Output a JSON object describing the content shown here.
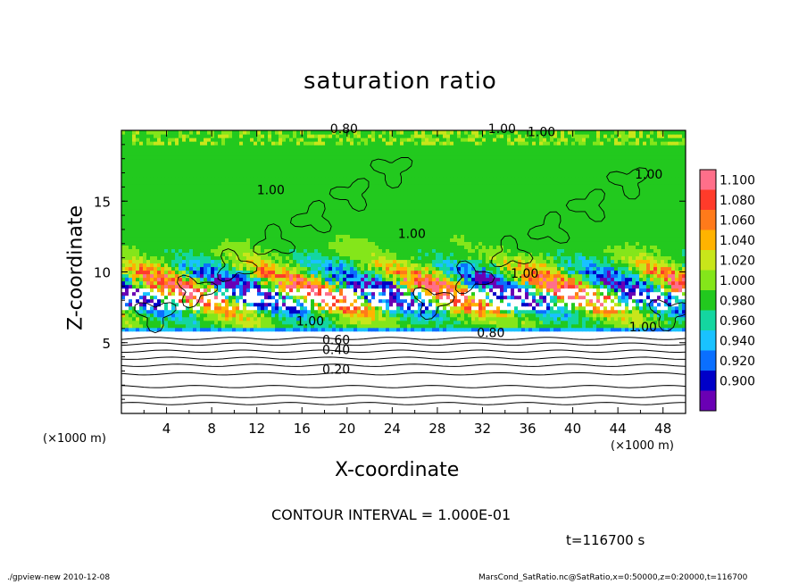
{
  "chart_data": {
    "type": "heatmap",
    "title": "saturation ratio",
    "xlabel": "X-coordinate",
    "ylabel": "Z-coordinate",
    "x_unit": "(×1000 m)",
    "y_unit": "(×1000 m)",
    "xlim": [
      0,
      50
    ],
    "ylim": [
      0,
      20
    ],
    "x_ticks": [
      "4",
      "8",
      "12",
      "16",
      "20",
      "24",
      "28",
      "32",
      "36",
      "40",
      "44",
      "48"
    ],
    "y_ticks": [
      "5",
      "10",
      "15"
    ],
    "colorbar": {
      "levels": [
        "1.100",
        "1.080",
        "1.060",
        "1.040",
        "1.020",
        "1.000",
        "0.980",
        "0.960",
        "0.940",
        "0.920",
        "0.900"
      ],
      "colors": [
        "#ff6f8a",
        "#ff3b2a",
        "#ff7a1a",
        "#ffb300",
        "#c8e61a",
        "#84e61a",
        "#22c91e",
        "#14d6a0",
        "#19c2ff",
        "#0a6fff",
        "#0000c8",
        "#6a00b4"
      ]
    },
    "contour_labels": [
      "0.80",
      "1.00",
      "1.00",
      "1.00",
      "1.00",
      "1.00",
      "0.80",
      "0.60",
      "0.40",
      "0.20",
      "1.00",
      "1.00",
      "1.00"
    ],
    "contour_interval": "CONTOUR INTERVAL = 1.000E-01",
    "time": "t=116700 s"
  },
  "footer": {
    "left": "./gpview-new  2010-12-08",
    "right": "MarsCond_SatRatio.nc@SatRatio,x=0:50000,z=0:20000,t=116700"
  }
}
